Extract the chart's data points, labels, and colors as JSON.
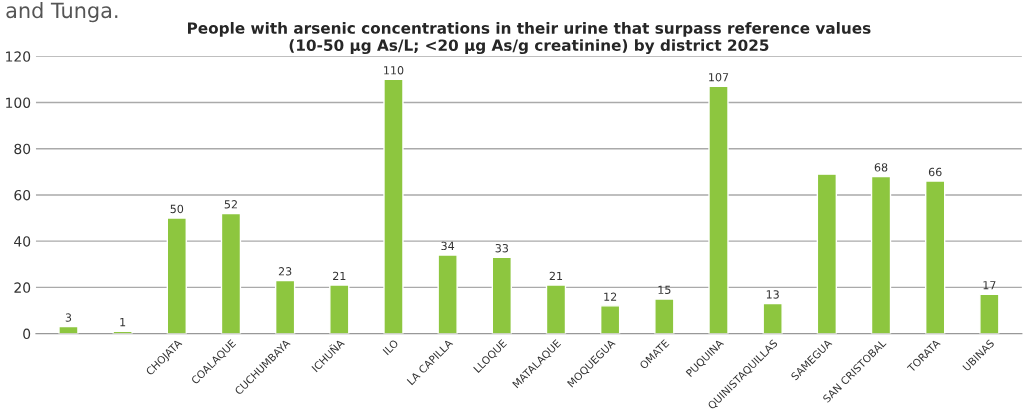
{
  "chart_data": {
    "type": "bar",
    "title": "People with arsenic concentrations in their urine that surpass reference values\n(10-50 µg As/L; <20 µg As/g creatinine) by district 2025",
    "categories": [
      null,
      null,
      "CHOJATA",
      "COALAQUE",
      "CUCHUMBAYA",
      "ICHUÑA",
      "ILO",
      "LA CAPILLA",
      "LLOQUE",
      "MATALAQUE",
      "MOQUEGUA",
      "OMATE",
      "PUQUINA",
      "QUINISTAQUILLAS",
      "SAMEGUA",
      "SAN CRISTOBAL",
      "TORATA",
      "UBINAS"
    ],
    "values": [
      3,
      1,
      50,
      52,
      23,
      21,
      110,
      34,
      33,
      21,
      12,
      15,
      107,
      13,
      69,
      68,
      66,
      17
    ],
    "value_labels": [
      "3",
      "1",
      "50",
      "52",
      "23",
      "21",
      "110",
      "34",
      "33",
      "21",
      "12",
      "15",
      "107",
      "13",
      null,
      "68",
      "66",
      "17"
    ],
    "color": "#8dc63f",
    "ylim": [
      0,
      120
    ],
    "yticks": [
      0,
      20,
      40,
      60,
      80,
      100,
      120
    ],
    "grid": "y",
    "annotations": [
      "and Tunga."
    ]
  }
}
